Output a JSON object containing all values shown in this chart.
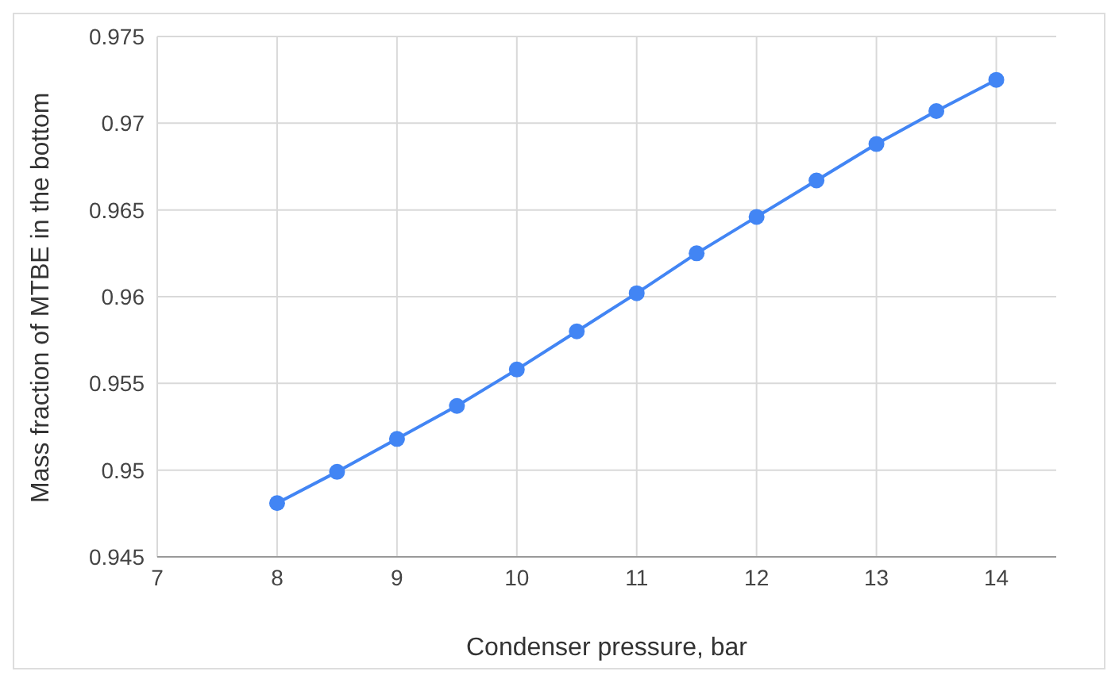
{
  "chart_data": {
    "type": "line",
    "xlabel": "Condenser pressure, bar",
    "ylabel": "Mass fraction of MTBE in the bottom",
    "x": [
      8,
      8.5,
      9,
      9.5,
      10,
      10.5,
      11,
      11.5,
      12,
      12.5,
      13,
      13.5,
      14
    ],
    "series": [
      {
        "color": "#4285f4",
        "values": [
          0.9481,
          0.9499,
          0.9518,
          0.9537,
          0.9558,
          0.958,
          0.9602,
          0.9625,
          0.9646,
          0.9667,
          0.9688,
          0.9707,
          0.9725
        ]
      }
    ],
    "xlim": [
      7,
      14.5
    ],
    "xticks": [
      7,
      8,
      9,
      10,
      11,
      12,
      13,
      14
    ],
    "ylim": [
      0.945,
      0.975
    ],
    "yticks": [
      0.945,
      0.95,
      0.955,
      0.96,
      0.965,
      0.97,
      0.975
    ],
    "grid": true,
    "marker": "circle",
    "line_style": "solid",
    "legend": false
  }
}
